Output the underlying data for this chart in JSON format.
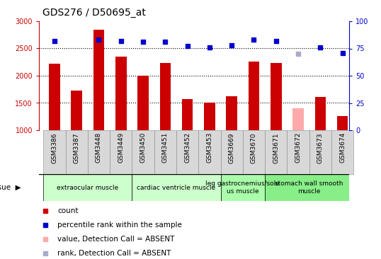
{
  "title": "GDS276 / D50695_at",
  "samples": [
    "GSM3386",
    "GSM3387",
    "GSM3448",
    "GSM3449",
    "GSM3450",
    "GSM3451",
    "GSM3452",
    "GSM3453",
    "GSM3669",
    "GSM3670",
    "GSM3671",
    "GSM3672",
    "GSM3673",
    "GSM3674"
  ],
  "bar_values": [
    2220,
    1730,
    2850,
    2350,
    2000,
    2240,
    1570,
    1510,
    1620,
    2260,
    2240,
    1400,
    1610,
    1260
  ],
  "bar_colors": [
    "#cc0000",
    "#cc0000",
    "#cc0000",
    "#cc0000",
    "#cc0000",
    "#cc0000",
    "#cc0000",
    "#cc0000",
    "#cc0000",
    "#cc0000",
    "#cc0000",
    "#ffaaaa",
    "#cc0000",
    "#cc0000"
  ],
  "dot_values": [
    82,
    null,
    83,
    82,
    81,
    81,
    77,
    76,
    78,
    83,
    82,
    null,
    76,
    71
  ],
  "dot_colors": [
    "#0000cc",
    "#0000cc",
    "#0000cc",
    "#0000cc",
    "#0000cc",
    "#0000cc",
    "#0000cc",
    "#0000cc",
    "#0000cc",
    "#0000cc",
    "#0000cc",
    "#0000cc",
    "#0000cc",
    "#0000cc"
  ],
  "absent_dot_index": 11,
  "absent_dot_value": 70,
  "ylim_left": [
    1000,
    3000
  ],
  "ylim_right": [
    0,
    100
  ],
  "yticks_left": [
    1000,
    1500,
    2000,
    2500,
    3000
  ],
  "yticks_right": [
    0,
    25,
    50,
    75,
    100
  ],
  "hlines": [
    1500,
    2000,
    2500
  ],
  "tissue_groups": [
    {
      "label": "extraocular muscle",
      "start": 0,
      "end": 3,
      "color": "#ccffcc"
    },
    {
      "label": "cardiac ventricle muscle",
      "start": 4,
      "end": 7,
      "color": "#ccffcc"
    },
    {
      "label": "leg gastrocnemius/sole\nus muscle",
      "start": 8,
      "end": 9,
      "color": "#aaffaa"
    },
    {
      "label": "stomach wall smooth\nmuscle",
      "start": 10,
      "end": 13,
      "color": "#88ee88"
    }
  ],
  "legend_items": [
    {
      "label": "count",
      "color": "#cc0000"
    },
    {
      "label": "percentile rank within the sample",
      "color": "#0000cc"
    },
    {
      "label": "value, Detection Call = ABSENT",
      "color": "#ffaaaa"
    },
    {
      "label": "rank, Detection Call = ABSENT",
      "color": "#aaaacc"
    }
  ],
  "bar_width": 0.5,
  "bar_bottom": 1000,
  "xlim": [
    -0.7,
    13.3
  ]
}
